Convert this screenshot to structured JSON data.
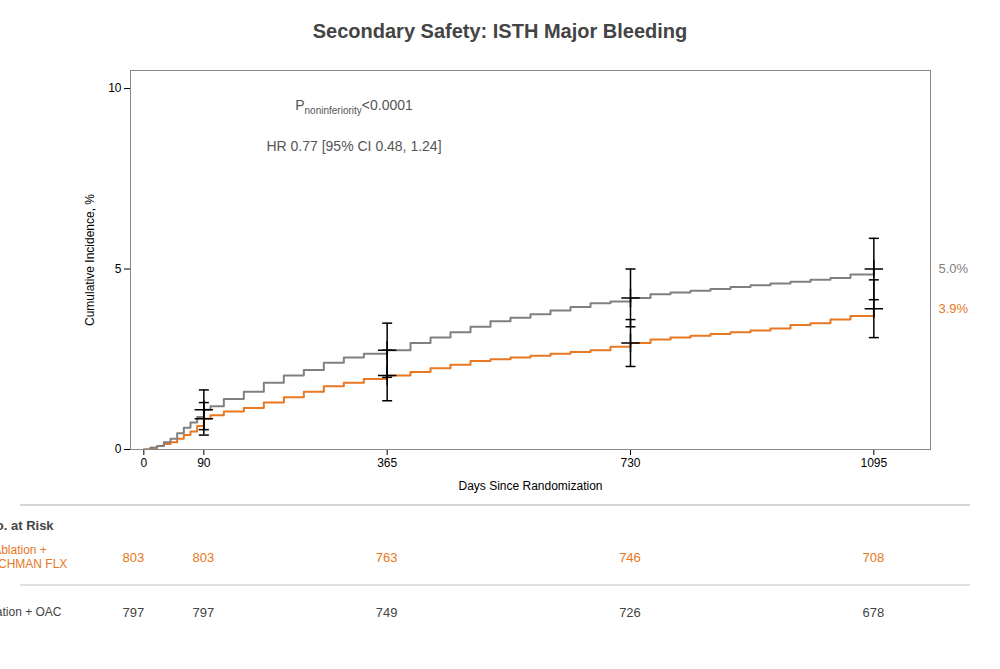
{
  "chart_data": {
    "type": "line",
    "line_style": "step",
    "title": "Secondary Safety: ISTH Major Bleeding",
    "xlabel": "Days Since Randomization",
    "ylabel": "Cumulative Incidence, %",
    "xlim": [
      -20,
      1180
    ],
    "xticks": [
      0,
      90,
      365,
      730,
      1095
    ],
    "ylim": [
      0,
      10.5
    ],
    "yticks": [
      0,
      5,
      10
    ],
    "grid": false,
    "series": [
      {
        "name": "Ablation +\nWATCHMAN FLX",
        "color": "#E87722",
        "x": [
          0,
          10,
          20,
          30,
          40,
          50,
          60,
          70,
          80,
          90,
          100,
          120,
          150,
          180,
          210,
          240,
          270,
          300,
          330,
          365,
          400,
          430,
          460,
          490,
          520,
          550,
          580,
          610,
          640,
          670,
          700,
          730,
          760,
          790,
          820,
          850,
          880,
          910,
          940,
          970,
          1000,
          1030,
          1060,
          1095
        ],
        "values": [
          0,
          0.05,
          0.1,
          0.15,
          0.2,
          0.3,
          0.4,
          0.5,
          0.65,
          0.85,
          0.95,
          1.05,
          1.15,
          1.3,
          1.45,
          1.6,
          1.75,
          1.85,
          1.95,
          2.05,
          2.15,
          2.25,
          2.35,
          2.45,
          2.5,
          2.55,
          2.6,
          2.65,
          2.7,
          2.75,
          2.85,
          2.95,
          3.05,
          3.1,
          3.15,
          3.2,
          3.25,
          3.3,
          3.35,
          3.45,
          3.5,
          3.6,
          3.7,
          3.9
        ],
        "end_label": "3.9%",
        "error_bars": {
          "x": [
            90,
            365,
            730,
            1095
          ],
          "y": [
            0.85,
            2.05,
            2.95,
            3.9
          ],
          "err": [
            0.45,
            0.7,
            0.65,
            0.8
          ]
        },
        "at_risk": [
          803,
          803,
          763,
          746,
          708
        ]
      },
      {
        "name": "Ablation + OAC",
        "color": "#808080",
        "x": [
          0,
          10,
          20,
          30,
          40,
          50,
          60,
          70,
          80,
          90,
          100,
          120,
          150,
          180,
          210,
          240,
          270,
          300,
          330,
          365,
          400,
          430,
          460,
          490,
          520,
          550,
          580,
          610,
          640,
          670,
          700,
          730,
          760,
          790,
          820,
          850,
          880,
          910,
          940,
          970,
          1000,
          1030,
          1060,
          1095
        ],
        "values": [
          0,
          0.05,
          0.1,
          0.2,
          0.3,
          0.45,
          0.6,
          0.75,
          0.9,
          1.1,
          1.2,
          1.4,
          1.6,
          1.85,
          2.05,
          2.2,
          2.4,
          2.55,
          2.65,
          2.75,
          2.95,
          3.1,
          3.25,
          3.4,
          3.55,
          3.65,
          3.75,
          3.85,
          3.95,
          4.05,
          4.1,
          4.2,
          4.3,
          4.35,
          4.4,
          4.45,
          4.5,
          4.55,
          4.6,
          4.65,
          4.7,
          4.75,
          4.85,
          5.0
        ],
        "end_label": "5.0%",
        "error_bars": {
          "x": [
            90,
            365,
            730,
            1095
          ],
          "y": [
            1.1,
            2.75,
            4.2,
            5.0
          ],
          "err": [
            0.55,
            0.75,
            0.8,
            0.85
          ]
        },
        "at_risk": [
          797,
          797,
          749,
          726,
          678
        ]
      }
    ],
    "annotations": [
      {
        "text": "P",
        "subscript": "noninferiority",
        "suffix": "<0.0001"
      },
      {
        "text": "HR 0.77 [95% CI 0.48, 1.24]"
      }
    ],
    "at_risk_table": {
      "label": "No. at Risk",
      "x": [
        0,
        90,
        365,
        730,
        1095
      ]
    }
  }
}
